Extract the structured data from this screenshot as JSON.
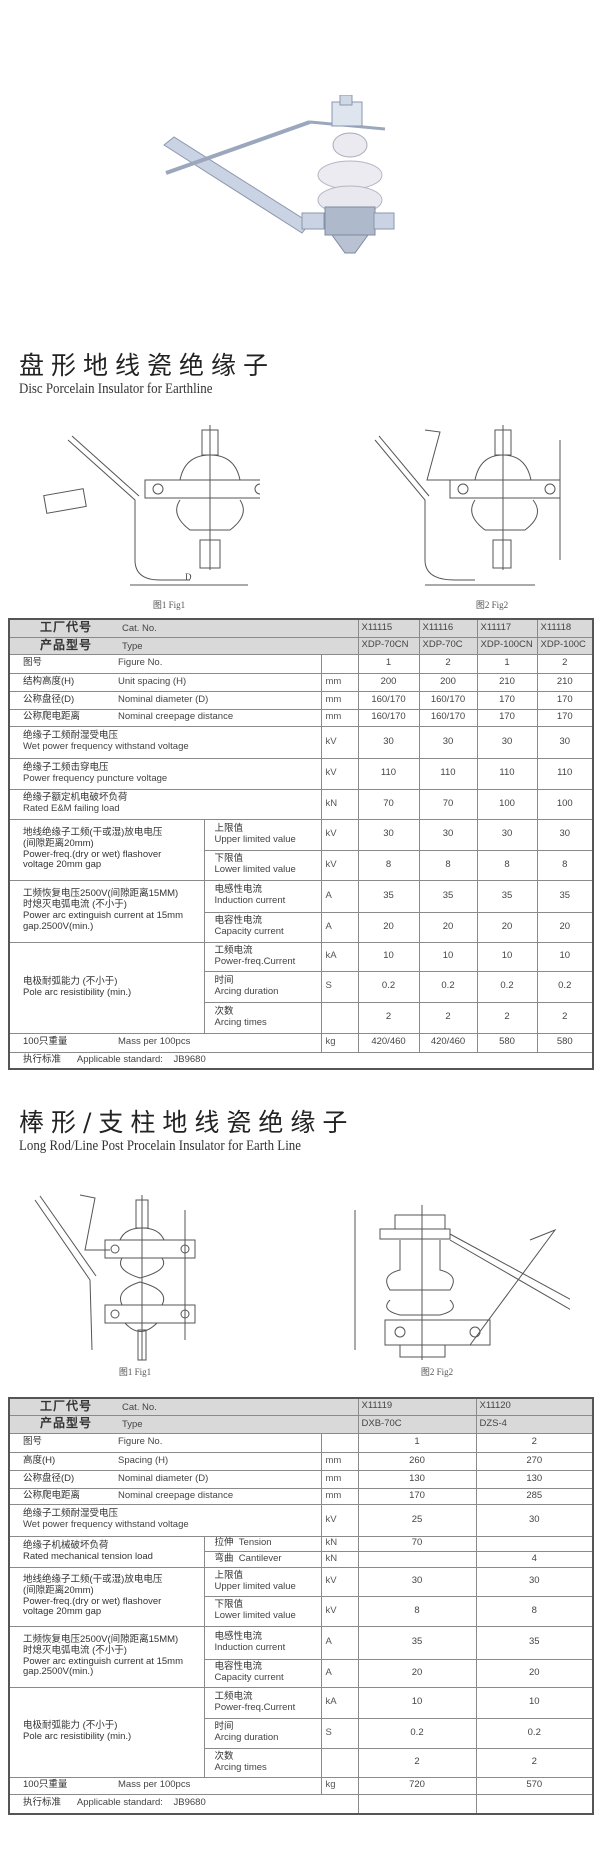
{
  "colors": {
    "header_bg": "#d9d9d9",
    "border": "#555555",
    "text": "#333333"
  },
  "section1": {
    "title_cn": "盘形地线瓷绝缘子",
    "title_en": "Disc Porcelain Insulator for Earthline",
    "fig1": "图1  Fig1",
    "fig2": "图2  Fig2",
    "dim_labels": {
      "h": "H",
      "d": "D"
    }
  },
  "section2": {
    "title_cn": "棒形/支柱地线瓷绝缘子",
    "title_en": "Long Rod/Line Post Procelain Insulator for Earth Line",
    "fig1": "图1  Fig1",
    "fig2": "图2  Fig2",
    "dim_labels": {
      "h": "H",
      "d": "D"
    }
  },
  "table1": {
    "header": {
      "cat_cn": "工厂代号",
      "cat_en": "Cat. No.",
      "type_cn": "产品型号",
      "type_en": "Type",
      "cat": [
        "X11115",
        "X11116",
        "X11117",
        "X11118"
      ],
      "type": [
        "XDP-70CN",
        "XDP-70C",
        "XDP-100CN",
        "XDP-100C"
      ]
    },
    "rows": [
      {
        "kind": "simple",
        "cn": "图号",
        "en": "Figure No.",
        "unit": "",
        "values": [
          "1",
          "2",
          "1",
          "2"
        ]
      },
      {
        "kind": "simple",
        "cn": "结构高度(H)",
        "en": "Unit spacing (H)",
        "unit": "mm",
        "values": [
          "200",
          "200",
          "210",
          "210"
        ]
      },
      {
        "kind": "simple",
        "cn": "公称盘径(D)",
        "en": "Nominal diameter (D)",
        "unit": "mm",
        "values": [
          "160/170",
          "160/170",
          "170",
          "170"
        ]
      },
      {
        "kind": "simple",
        "cn": "公称爬电距离",
        "en": "Nominal creepage distance",
        "unit": "mm",
        "values": [
          "160/170",
          "160/170",
          "170",
          "170"
        ]
      },
      {
        "kind": "double",
        "cn": "绝缘子工频耐湿受电压",
        "en": "Wet power frequency withstand voltage",
        "unit": "kV",
        "values": [
          "30",
          "30",
          "30",
          "30"
        ]
      },
      {
        "kind": "double",
        "cn": "绝缘子工频击穿电压",
        "en": "Power frequency puncture voltage",
        "unit": "kV",
        "values": [
          "110",
          "110",
          "110",
          "110"
        ]
      },
      {
        "kind": "double",
        "cn": "绝缘子额定机电破坏负荷",
        "en": "Rated E&M failing load",
        "unit": "kN",
        "values": [
          "70",
          "70",
          "100",
          "100"
        ]
      },
      {
        "kind": "group",
        "lines": [
          "地线绝缘子工频(干或湿)放电电压",
          "(间隙距离20mm)",
          "Power-freq.(dry or wet) flashover",
          "voltage 20mm  gap"
        ],
        "subs": [
          {
            "cn": "上限值",
            "en": "Upper limited value",
            "unit": "kV",
            "values": [
              "30",
              "30",
              "30",
              "30"
            ]
          },
          {
            "cn": "下限值",
            "en": "Lower limited value",
            "unit": "kV",
            "values": [
              "8",
              "8",
              "8",
              "8"
            ]
          }
        ]
      },
      {
        "kind": "group",
        "lines": [
          "工频恢复电压2500V(间隙距离15MM)",
          "时熄灭电弧电流 (不小于)",
          "Power arc extinguish current at 15mm",
          "gap.2500V(min.)"
        ],
        "subs": [
          {
            "cn": "电感性电流",
            "en": "Induction current",
            "unit": "A",
            "values": [
              "35",
              "35",
              "35",
              "35"
            ]
          },
          {
            "cn": "电容性电流",
            "en": "Capacity current",
            "unit": "A",
            "values": [
              "20",
              "20",
              "20",
              "20"
            ]
          }
        ]
      },
      {
        "kind": "group",
        "lines": [
          "电极耐弧能力 (不小于)",
          "Pole arc resistibility (min.)"
        ],
        "subs": [
          {
            "cn": "工频电流",
            "en": "Power-freq.Current",
            "unit": "kA",
            "values": [
              "10",
              "10",
              "10",
              "10"
            ]
          },
          {
            "cn": "时间",
            "en": "Arcing duration",
            "unit": "S",
            "values": [
              "0.2",
              "0.2",
              "0.2",
              "0.2"
            ]
          },
          {
            "cn": "次数",
            "en": "Arcing times",
            "unit": "",
            "values": [
              "2",
              "2",
              "2",
              "2"
            ]
          }
        ]
      },
      {
        "kind": "simple",
        "cn": "100只重量",
        "en": "Mass per 100pcs",
        "unit": "kg",
        "values": [
          "420/460",
          "420/460",
          "580",
          "580"
        ]
      },
      {
        "kind": "std",
        "cn": "执行标准",
        "en": "Applicable standard:",
        "value": "JB9680"
      }
    ]
  },
  "table2": {
    "header": {
      "cat_cn": "工厂代号",
      "cat_en": "Cat. No.",
      "type_cn": "产品型号",
      "type_en": "Type",
      "cat": [
        "X11119",
        "X11120"
      ],
      "type": [
        "DXB-70C",
        "DZS-4"
      ]
    },
    "rows": [
      {
        "kind": "simple",
        "cn": "图号",
        "en": "Figure No.",
        "unit": "",
        "values": [
          "1",
          "2"
        ]
      },
      {
        "kind": "simple",
        "cn": "高度(H)",
        "en": "Spacing (H)",
        "unit": "mm",
        "values": [
          "260",
          "270"
        ]
      },
      {
        "kind": "simple",
        "cn": "公称盘径(D)",
        "en": "Nominal diameter (D)",
        "unit": "mm",
        "values": [
          "130",
          "130"
        ]
      },
      {
        "kind": "simple",
        "cn": "公称爬电距离",
        "en": "Nominal creepage distance",
        "unit": "mm",
        "values": [
          "170",
          "285"
        ]
      },
      {
        "kind": "double",
        "cn": "绝缘子工频耐湿受电压",
        "en": "Wet power frequency withstand voltage",
        "unit": "kV",
        "values": [
          "25",
          "30"
        ]
      },
      {
        "kind": "group",
        "lines": [
          "绝缘子机械破坏负荷",
          "Rated mechanical tension load"
        ],
        "subs": [
          {
            "cn": "拉伸",
            "en": "Tension",
            "inline": true,
            "unit": "kN",
            "values": [
              "70",
              ""
            ]
          },
          {
            "cn": "弯曲",
            "en": "Cantilever",
            "inline": true,
            "unit": "kN",
            "values": [
              "",
              "4"
            ]
          }
        ]
      },
      {
        "kind": "group",
        "lines": [
          "地线绝缘子工频(干或湿)放电电压",
          "(间隙距离20mm)",
          "Power-freq.(dry or wet) flashover",
          "voltage 20mm  gap"
        ],
        "subs": [
          {
            "cn": "上限值",
            "en": "Upper limited value",
            "unit": "kV",
            "values": [
              "30",
              "30"
            ]
          },
          {
            "cn": "下限值",
            "en": "Lower limited value",
            "unit": "kV",
            "values": [
              "8",
              "8"
            ]
          }
        ]
      },
      {
        "kind": "group",
        "lines": [
          "工频恢复电压2500V(间隙距离15MM)",
          "时熄灭电弧电流 (不小于)",
          "Power arc extinguish current at 15mm",
          "gap.2500V(min.)"
        ],
        "subs": [
          {
            "cn": "电感性电流",
            "en": "Induction current",
            "unit": "A",
            "values": [
              "35",
              "35"
            ]
          },
          {
            "cn": "电容性电流",
            "en": "Capacity current",
            "unit": "A",
            "values": [
              "20",
              "20"
            ]
          }
        ]
      },
      {
        "kind": "group",
        "lines": [
          "电极耐弧能力 (不小于)",
          "Pole arc resistibility (min.)"
        ],
        "subs": [
          {
            "cn": "工频电流",
            "en": "Power-freq.Current",
            "unit": "kA",
            "values": [
              "10",
              "10"
            ]
          },
          {
            "cn": "时间",
            "en": "Arcing duration",
            "unit": "S",
            "values": [
              "0.2",
              "0.2"
            ]
          },
          {
            "cn": "次数",
            "en": "Arcing times",
            "unit": "",
            "values": [
              "2",
              "2"
            ]
          }
        ]
      },
      {
        "kind": "simple",
        "cn": "100只重量",
        "en": "Mass per 100pcs",
        "unit": "kg",
        "values": [
          "720",
          "570"
        ]
      },
      {
        "kind": "std",
        "cn": "执行标准",
        "en": "Applicable standard:",
        "value": "JB9680",
        "split": true
      }
    ]
  }
}
